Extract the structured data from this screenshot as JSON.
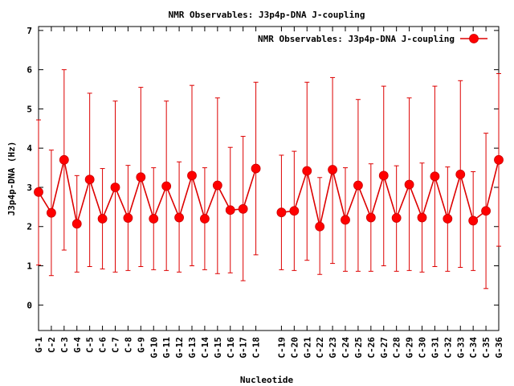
{
  "chart_data": {
    "type": "line",
    "title": "NMR Observables: J3p4p-DNA J-coupling",
    "xlabel": "Nucleotide",
    "ylabel": "J3p4p-DNA (Hz)",
    "ylim": [
      -0.65,
      7.1
    ],
    "yticks": [
      0,
      1,
      2,
      3,
      4,
      5,
      6,
      7
    ],
    "legend_placement": "top-right",
    "grid": false,
    "color": "#ff0000",
    "series": [
      {
        "name": "NMR Observables: J3p4p-DNA J-coupling",
        "points": [
          {
            "x": 1,
            "label": "G-1",
            "y": 2.88,
            "lo": 1.02,
            "hi": 4.72
          },
          {
            "x": 2,
            "label": "C-2",
            "y": 2.35,
            "lo": 0.75,
            "hi": 3.95
          },
          {
            "x": 3,
            "label": "C-3",
            "y": 3.7,
            "lo": 1.4,
            "hi": 6.0
          },
          {
            "x": 4,
            "label": "G-4",
            "y": 2.07,
            "lo": 0.84,
            "hi": 3.3
          },
          {
            "x": 5,
            "label": "C-5",
            "y": 3.2,
            "lo": 0.98,
            "hi": 5.4
          },
          {
            "x": 6,
            "label": "C-6",
            "y": 2.2,
            "lo": 0.92,
            "hi": 3.48
          },
          {
            "x": 7,
            "label": "C-7",
            "y": 3.0,
            "lo": 0.84,
            "hi": 5.2
          },
          {
            "x": 8,
            "label": "C-8",
            "y": 2.22,
            "lo": 0.88,
            "hi": 3.56
          },
          {
            "x": 9,
            "label": "G-9",
            "y": 3.26,
            "lo": 0.98,
            "hi": 5.55
          },
          {
            "x": 10,
            "label": "G-10",
            "y": 2.2,
            "lo": 0.9,
            "hi": 3.5
          },
          {
            "x": 11,
            "label": "G-11",
            "y": 3.03,
            "lo": 0.88,
            "hi": 5.2
          },
          {
            "x": 12,
            "label": "G-12",
            "y": 2.23,
            "lo": 0.84,
            "hi": 3.65
          },
          {
            "x": 13,
            "label": "G-13",
            "y": 3.3,
            "lo": 1.0,
            "hi": 5.6
          },
          {
            "x": 14,
            "label": "C-14",
            "y": 2.2,
            "lo": 0.9,
            "hi": 3.5
          },
          {
            "x": 15,
            "label": "G-15",
            "y": 3.05,
            "lo": 0.8,
            "hi": 5.28
          },
          {
            "x": 16,
            "label": "C-16",
            "y": 2.42,
            "lo": 0.82,
            "hi": 4.02
          },
          {
            "x": 17,
            "label": "G-17",
            "y": 2.45,
            "lo": 0.62,
            "hi": 4.3
          },
          {
            "x": 18,
            "label": "C-18",
            "y": 3.48,
            "lo": 1.28,
            "hi": 5.68
          },
          {
            "x": 20,
            "label": "C-19",
            "y": 2.36,
            "lo": 0.9,
            "hi": 3.82
          },
          {
            "x": 21,
            "label": "C-20",
            "y": 2.4,
            "lo": 0.88,
            "hi": 3.92
          },
          {
            "x": 22,
            "label": "G-21",
            "y": 3.42,
            "lo": 1.14,
            "hi": 5.68
          },
          {
            "x": 23,
            "label": "C-22",
            "y": 2.0,
            "lo": 0.78,
            "hi": 3.25
          },
          {
            "x": 24,
            "label": "G-23",
            "y": 3.45,
            "lo": 1.06,
            "hi": 5.8
          },
          {
            "x": 25,
            "label": "C-24",
            "y": 2.17,
            "lo": 0.86,
            "hi": 3.5
          },
          {
            "x": 26,
            "label": "G-25",
            "y": 3.05,
            "lo": 0.86,
            "hi": 5.24
          },
          {
            "x": 27,
            "label": "C-26",
            "y": 2.23,
            "lo": 0.86,
            "hi": 3.6
          },
          {
            "x": 28,
            "label": "G-27",
            "y": 3.3,
            "lo": 1.0,
            "hi": 5.58
          },
          {
            "x": 29,
            "label": "C-28",
            "y": 2.22,
            "lo": 0.86,
            "hi": 3.55
          },
          {
            "x": 30,
            "label": "G-29",
            "y": 3.07,
            "lo": 0.88,
            "hi": 5.28
          },
          {
            "x": 31,
            "label": "C-30",
            "y": 2.23,
            "lo": 0.84,
            "hi": 3.62
          },
          {
            "x": 32,
            "label": "G-31",
            "y": 3.28,
            "lo": 0.98,
            "hi": 5.58
          },
          {
            "x": 33,
            "label": "C-32",
            "y": 2.2,
            "lo": 0.86,
            "hi": 3.52
          },
          {
            "x": 34,
            "label": "G-33",
            "y": 3.33,
            "lo": 0.96,
            "hi": 5.72
          },
          {
            "x": 35,
            "label": "C-34",
            "y": 2.15,
            "lo": 0.88,
            "hi": 3.4
          },
          {
            "x": 36,
            "label": "C-35",
            "y": 2.4,
            "lo": 0.42,
            "hi": 4.38
          },
          {
            "x": 37,
            "label": "G-36",
            "y": 3.7,
            "lo": 1.5,
            "hi": 5.9
          }
        ]
      }
    ]
  }
}
